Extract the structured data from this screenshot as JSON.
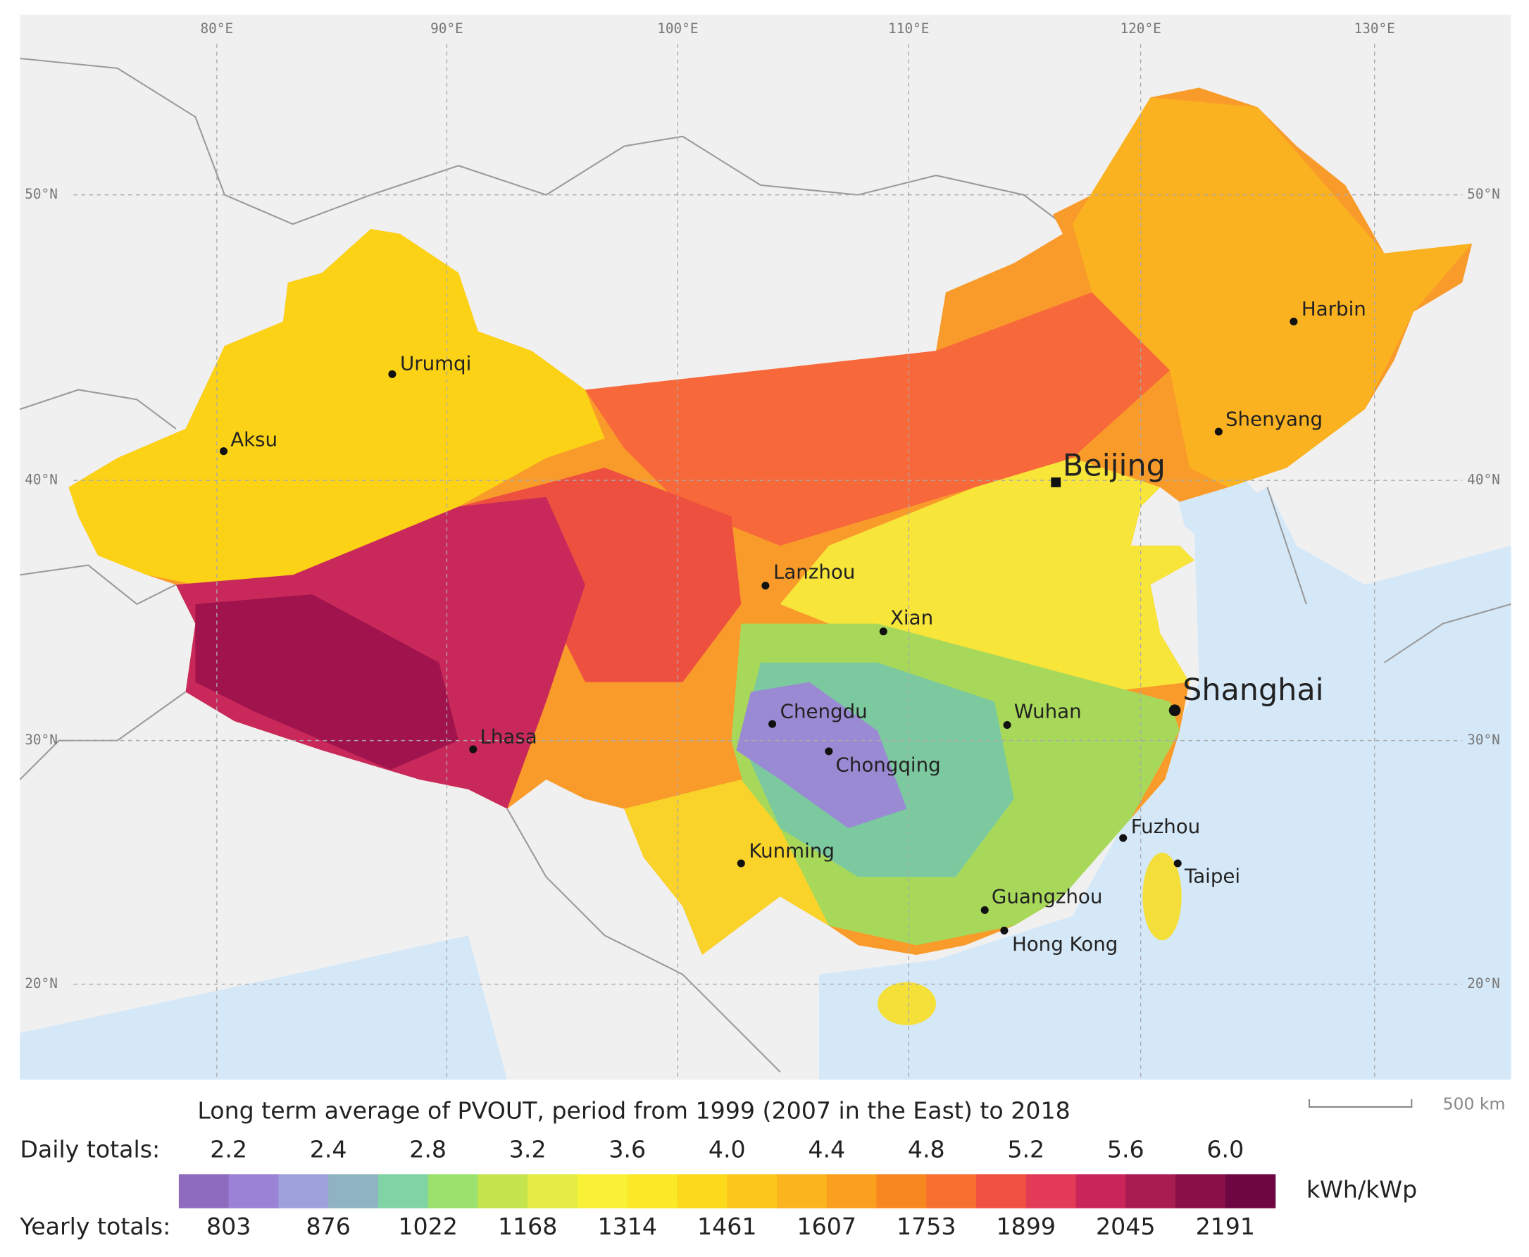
{
  "map": {
    "graticule": {
      "lon": [
        "80°E",
        "90°E",
        "100°E",
        "110°E",
        "120°E",
        "130°E"
      ],
      "lat": [
        "50°N",
        "40°N",
        "30°N",
        "20°N"
      ]
    },
    "cities": [
      "Urumqi",
      "Aksu",
      "Beijing",
      "Harbin",
      "Shenyang",
      "Lanzhou",
      "Xian",
      "Shanghai",
      "Chengdu",
      "Chongqing",
      "Wuhan",
      "Lhasa",
      "Kunming",
      "Fuzhou",
      "Taipei",
      "Guangzhou",
      "Hong Kong"
    ],
    "scale_bar": "500 km"
  },
  "legend": {
    "title": "Long term average of PVOUT, period from 1999 (2007 in the East) to 2018",
    "daily_label": "Daily totals:",
    "daily": [
      "2.2",
      "2.4",
      "2.8",
      "3.2",
      "3.6",
      "4.0",
      "4.4",
      "4.8",
      "5.2",
      "5.6",
      "6.0"
    ],
    "yearly_label": "Yearly totals:",
    "yearly": [
      "803",
      "876",
      "1022",
      "1168",
      "1314",
      "1461",
      "1607",
      "1753",
      "1899",
      "2045",
      "2191"
    ],
    "unit": "kWh/kWp",
    "colors": [
      "#8e6bbf",
      "#9b82d6",
      "#9ea0dc",
      "#8fb3c0",
      "#7fd3a4",
      "#9ce06e",
      "#c5e34c",
      "#e4ec45",
      "#f8f136",
      "#fbe827",
      "#fcd91a",
      "#fcc71a",
      "#fbb41e",
      "#fa9f1e",
      "#f9871f",
      "#f66f2e",
      "#ef5040",
      "#e23a57",
      "#c92559",
      "#a81c52",
      "#8a0f49",
      "#6d0641"
    ]
  }
}
